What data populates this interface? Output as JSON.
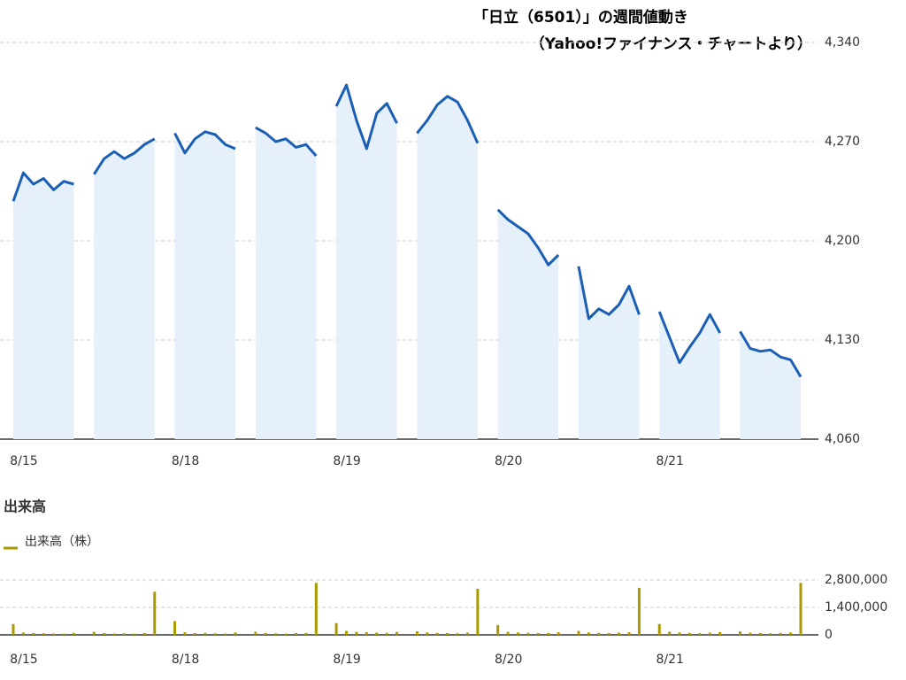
{
  "chart_data": [
    {
      "type": "line",
      "title": "「日立（6501）」の週間値動き",
      "subtitle": "（Yahoo!ファイナンス・チャートより）",
      "color": "#1a5fb4",
      "categories": [
        "8/15",
        null,
        null,
        null,
        null,
        null,
        null,
        null,
        null,
        null,
        null,
        null,
        null,
        null,
        null,
        null,
        "8/18",
        null,
        null,
        null,
        null,
        null,
        null,
        null,
        null,
        null,
        null,
        null,
        null,
        null,
        null,
        null,
        "8/19",
        null,
        null,
        null,
        null,
        null,
        null,
        null,
        null,
        null,
        null,
        null,
        null,
        null,
        null,
        null,
        "8/20",
        null,
        null,
        null,
        null,
        null,
        null,
        null,
        null,
        null,
        null,
        null,
        null,
        null,
        null,
        null,
        "8/21",
        null,
        null,
        null,
        null,
        null,
        null,
        null,
        null,
        null,
        null,
        null,
        null,
        null,
        null
      ],
      "values": [
        4228,
        4248,
        4240,
        4244,
        4236,
        4242,
        4240,
        null,
        4247,
        4258,
        4263,
        4258,
        4262,
        4268,
        4272,
        null,
        4276,
        4262,
        4272,
        4277,
        4275,
        4268,
        4265,
        null,
        4280,
        4276,
        4270,
        4272,
        4266,
        4268,
        4260,
        null,
        4295,
        4310,
        4285,
        4265,
        4290,
        4297,
        4283,
        null,
        4276,
        4285,
        4296,
        4302,
        4298,
        4285,
        4269,
        null,
        4222,
        4215,
        4210,
        4205,
        4195,
        4183,
        4190,
        null,
        4182,
        4145,
        4152,
        4148,
        4155,
        4168,
        4148,
        null,
        4150,
        4132,
        4114,
        4125,
        4135,
        4148,
        4135,
        null,
        4136,
        4124,
        4122,
        4123,
        4118,
        4116,
        4104
      ],
      "ylim": [
        4060,
        4340
      ],
      "yticks": [
        {
          "value": 4060,
          "label": "4,060"
        },
        {
          "value": 4130,
          "label": "4,130"
        },
        {
          "value": 4200,
          "label": "4,200"
        },
        {
          "value": 4270,
          "label": "4,270"
        },
        {
          "value": 4340,
          "label": "4,340"
        }
      ],
      "grid": true
    },
    {
      "type": "bar",
      "title": "出来高",
      "categories": [
        "8/15",
        null,
        null,
        null,
        null,
        null,
        null,
        null,
        null,
        null,
        null,
        null,
        null,
        null,
        null,
        null,
        "8/18",
        null,
        null,
        null,
        null,
        null,
        null,
        null,
        null,
        null,
        null,
        null,
        null,
        null,
        null,
        null,
        "8/19",
        null,
        null,
        null,
        null,
        null,
        null,
        null,
        null,
        null,
        null,
        null,
        null,
        null,
        null,
        null,
        "8/20",
        null,
        null,
        null,
        null,
        null,
        null,
        null,
        null,
        null,
        null,
        null,
        null,
        null,
        null,
        null,
        "8/21",
        null,
        null,
        null,
        null,
        null,
        null,
        null,
        null,
        null,
        null,
        null,
        null,
        null,
        null
      ],
      "series": [
        {
          "name": "出来高（株）",
          "color": "#a89a00",
          "values": [
            550000,
            120000,
            90000,
            80000,
            70000,
            60000,
            100000,
            null,
            150000,
            90000,
            70000,
            80000,
            60000,
            90000,
            2200000,
            null,
            700000,
            130000,
            90000,
            100000,
            80000,
            70000,
            120000,
            null,
            160000,
            100000,
            80000,
            70000,
            90000,
            100000,
            2650000,
            null,
            600000,
            200000,
            150000,
            130000,
            110000,
            100000,
            150000,
            null,
            180000,
            120000,
            100000,
            90000,
            80000,
            110000,
            2350000,
            null,
            500000,
            150000,
            120000,
            100000,
            90000,
            100000,
            130000,
            null,
            200000,
            120000,
            100000,
            90000,
            110000,
            130000,
            2400000,
            null,
            550000,
            160000,
            120000,
            100000,
            90000,
            110000,
            140000,
            null,
            170000,
            110000,
            90000,
            80000,
            100000,
            120000,
            2650000
          ]
        }
      ],
      "ylim": [
        0,
        2800000
      ],
      "yticks": [
        0,
        {
          "value": 1400000,
          "label": "1,400,000"
        },
        {
          "value": 2800000,
          "label": "2,800,000"
        }
      ],
      "grid": true
    }
  ]
}
